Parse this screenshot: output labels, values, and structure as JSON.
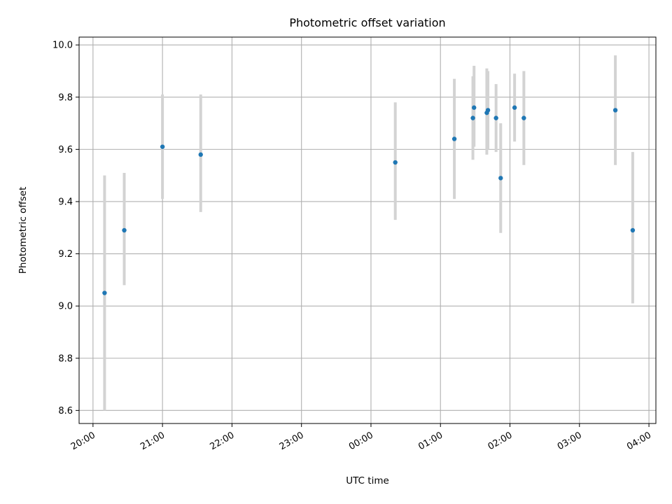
{
  "chart_data": {
    "type": "scatter",
    "title": "Photometric offset variation",
    "xlabel": "UTC time",
    "ylabel": "Photometric offset",
    "ylim": [
      8.55,
      10.03
    ],
    "xlim": [
      "19:48",
      "04:06"
    ],
    "x_ticks": [
      "20:00",
      "21:00",
      "22:00",
      "23:00",
      "00:00",
      "01:00",
      "02:00",
      "03:00",
      "04:00"
    ],
    "y_ticks": [
      "8.6",
      "8.8",
      "9.0",
      "9.2",
      "9.4",
      "9.6",
      "9.8",
      "10.0"
    ],
    "grid": true,
    "marker_color": "#1f77b4",
    "errorbar_color": "#d3d3d3",
    "points": [
      {
        "x": "20:10",
        "y": 9.05,
        "yerr_low": 8.6,
        "yerr_high": 9.5
      },
      {
        "x": "20:27",
        "y": 9.29,
        "yerr_low": 9.08,
        "yerr_high": 9.51
      },
      {
        "x": "21:00",
        "y": 9.61,
        "yerr_low": 9.41,
        "yerr_high": 9.81
      },
      {
        "x": "21:33",
        "y": 9.58,
        "yerr_low": 9.36,
        "yerr_high": 9.81
      },
      {
        "x": "00:21",
        "y": 9.55,
        "yerr_low": 9.33,
        "yerr_high": 9.78
      },
      {
        "x": "01:12",
        "y": 9.64,
        "yerr_low": 9.41,
        "yerr_high": 9.87
      },
      {
        "x": "01:28",
        "y": 9.72,
        "yerr_low": 9.56,
        "yerr_high": 9.88
      },
      {
        "x": "01:29",
        "y": 9.76,
        "yerr_low": 9.61,
        "yerr_high": 9.92
      },
      {
        "x": "01:40",
        "y": 9.74,
        "yerr_low": 9.58,
        "yerr_high": 9.91
      },
      {
        "x": "01:41",
        "y": 9.75,
        "yerr_low": 9.6,
        "yerr_high": 9.9
      },
      {
        "x": "01:48",
        "y": 9.72,
        "yerr_low": 9.59,
        "yerr_high": 9.85
      },
      {
        "x": "01:52",
        "y": 9.49,
        "yerr_low": 9.28,
        "yerr_high": 9.7
      },
      {
        "x": "02:04",
        "y": 9.76,
        "yerr_low": 9.63,
        "yerr_high": 9.89
      },
      {
        "x": "02:12",
        "y": 9.72,
        "yerr_low": 9.54,
        "yerr_high": 9.9
      },
      {
        "x": "03:31",
        "y": 9.75,
        "yerr_low": 9.54,
        "yerr_high": 9.96
      },
      {
        "x": "03:46",
        "y": 9.29,
        "yerr_low": 9.01,
        "yerr_high": 9.59
      }
    ]
  }
}
